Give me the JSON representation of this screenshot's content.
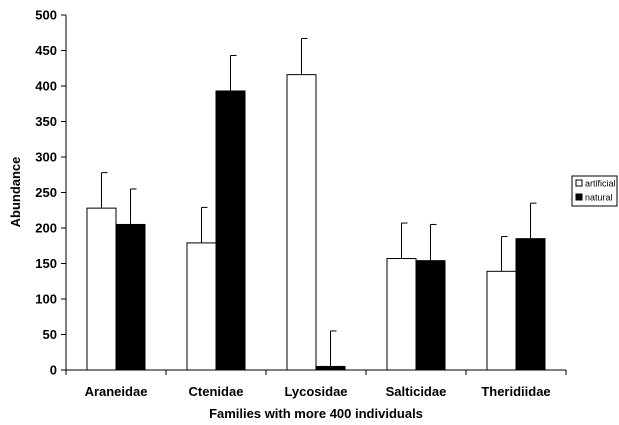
{
  "chart_data": {
    "type": "bar",
    "title": "",
    "xlabel": "Families with more 400 individuals",
    "ylabel": "Abundance",
    "categories": [
      "Araneidae",
      "Ctenidae",
      "Lycosidae",
      "Salticidae",
      "Theridiidae"
    ],
    "series": [
      {
        "name": "artificial",
        "color": "#ffffff",
        "values": [
          228,
          179,
          416,
          157,
          139
        ],
        "errors": [
          50,
          50,
          51,
          50,
          49
        ]
      },
      {
        "name": "natural",
        "color": "#000000",
        "values": [
          205,
          393,
          5,
          154,
          185
        ],
        "errors": [
          50,
          50,
          50,
          51,
          50
        ]
      }
    ],
    "ylim": [
      0,
      500
    ],
    "yticks": [
      0,
      50,
      100,
      150,
      200,
      250,
      300,
      350,
      400,
      450,
      500
    ],
    "grid": false,
    "legend_position": "right"
  }
}
